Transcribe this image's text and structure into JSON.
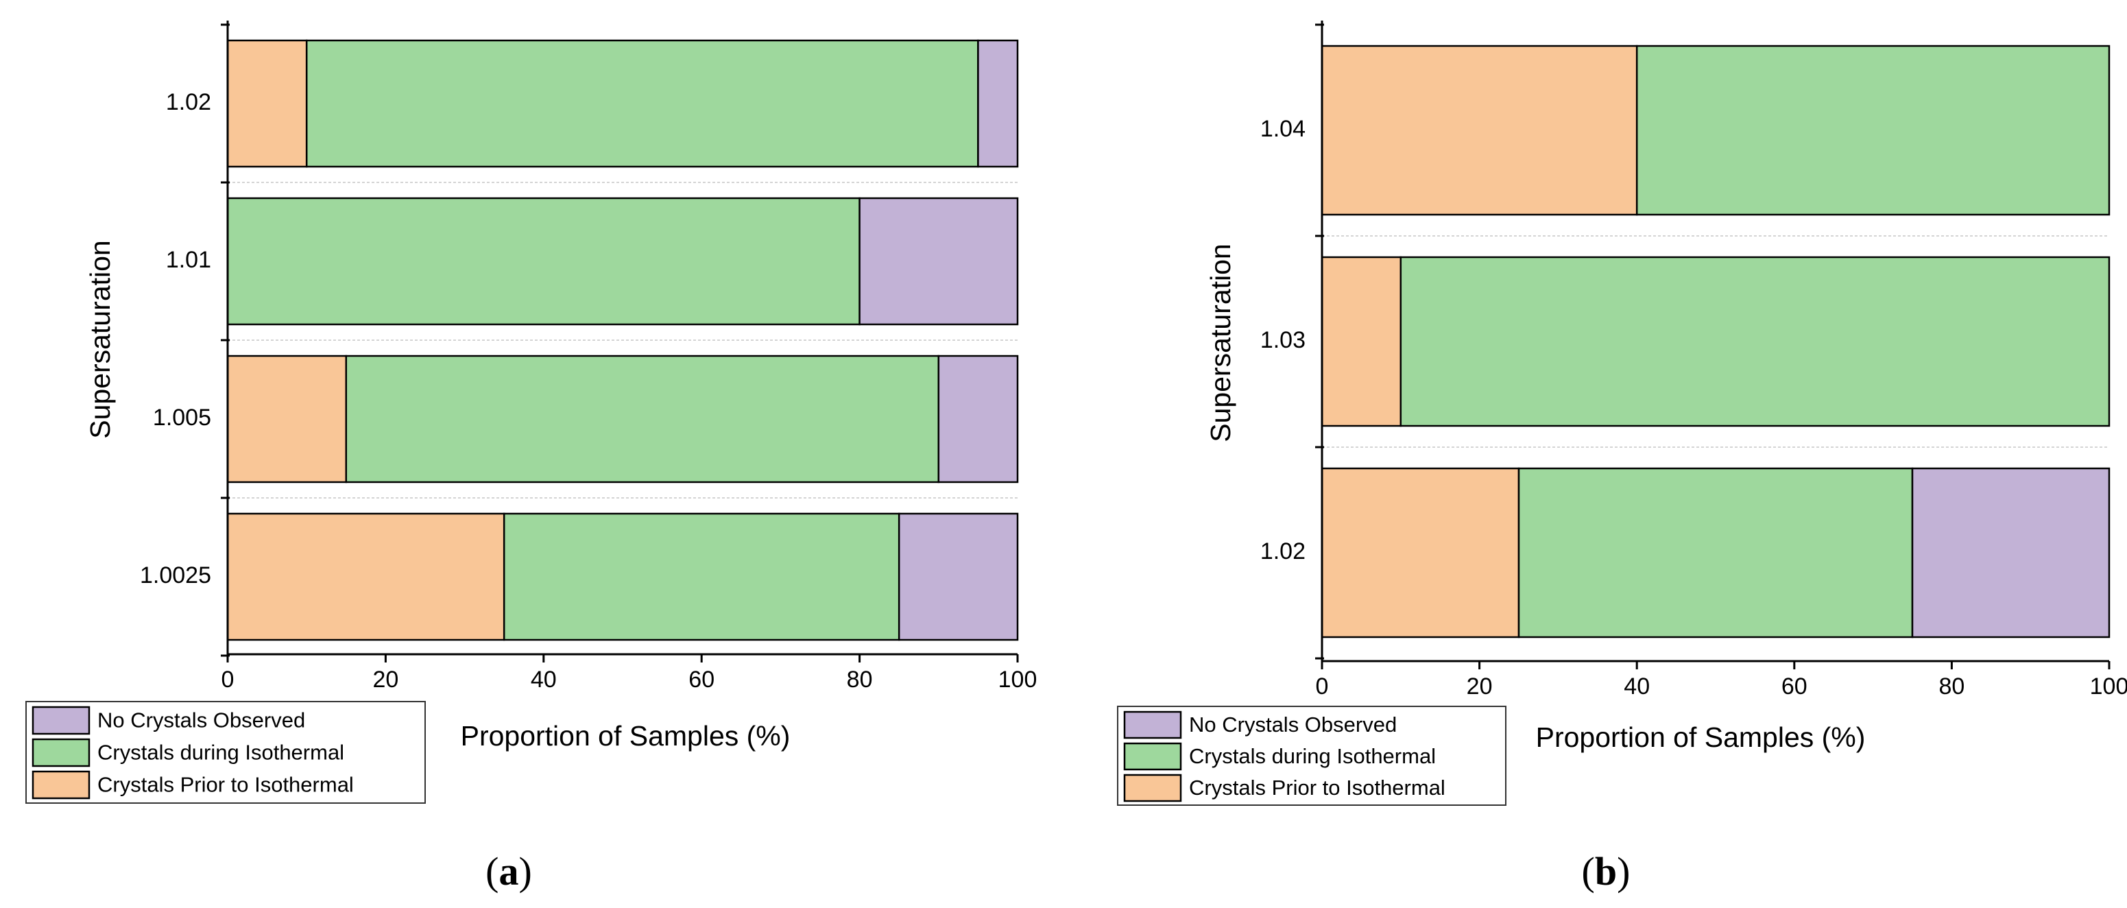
{
  "colors": {
    "prior": "#F9C697",
    "during": "#9ED89D",
    "none": "#C2B2D6",
    "separator": "#d4d4d4",
    "ink": "#000000"
  },
  "chart_data": [
    {
      "type": "bar",
      "orientation": "horizontal",
      "stacked": true,
      "panel_label": "(a)",
      "panel_letter": "a",
      "xlabel": "Proportion of Samples (%)",
      "ylabel": "Supersaturation",
      "xlim": [
        0,
        100
      ],
      "xticks": [
        0,
        20,
        40,
        60,
        80,
        100
      ],
      "categories": [
        "1.02",
        "1.01",
        "1.005",
        "1.0025"
      ],
      "series": [
        {
          "name": "Crystals Prior to Isothermal",
          "color_key": "prior",
          "values": [
            10,
            0,
            15,
            35
          ]
        },
        {
          "name": "Crystals during Isothermal",
          "color_key": "during",
          "values": [
            85,
            80,
            75,
            50
          ]
        },
        {
          "name": "No Crystals Observed",
          "color_key": "none",
          "values": [
            5,
            20,
            10,
            15
          ]
        }
      ],
      "legend": {
        "position": "bottom-left",
        "entries": [
          {
            "label": "No Crystals Observed",
            "color_key": "none"
          },
          {
            "label": "Crystals during Isothermal",
            "color_key": "during"
          },
          {
            "label": "Crystals Prior to Isothermal",
            "color_key": "prior"
          }
        ]
      }
    },
    {
      "type": "bar",
      "orientation": "horizontal",
      "stacked": true,
      "panel_label": "(b)",
      "panel_letter": "b",
      "xlabel": "Proportion of Samples (%)",
      "ylabel": "Supersaturation",
      "xlim": [
        0,
        100
      ],
      "xticks": [
        0,
        20,
        40,
        60,
        80,
        100
      ],
      "categories": [
        "1.04",
        "1.03",
        "1.02"
      ],
      "series": [
        {
          "name": "Crystals Prior to Isothermal",
          "color_key": "prior",
          "values": [
            40,
            10,
            25
          ]
        },
        {
          "name": "Crystals during Isothermal",
          "color_key": "during",
          "values": [
            60,
            90,
            50
          ]
        },
        {
          "name": "No Crystals Observed",
          "color_key": "none",
          "values": [
            0,
            0,
            25
          ]
        }
      ],
      "legend": {
        "position": "bottom-left",
        "entries": [
          {
            "label": "No Crystals Observed",
            "color_key": "none"
          },
          {
            "label": "Crystals during Isothermal",
            "color_key": "during"
          },
          {
            "label": "Crystals Prior to Isothermal",
            "color_key": "prior"
          }
        ]
      }
    }
  ]
}
